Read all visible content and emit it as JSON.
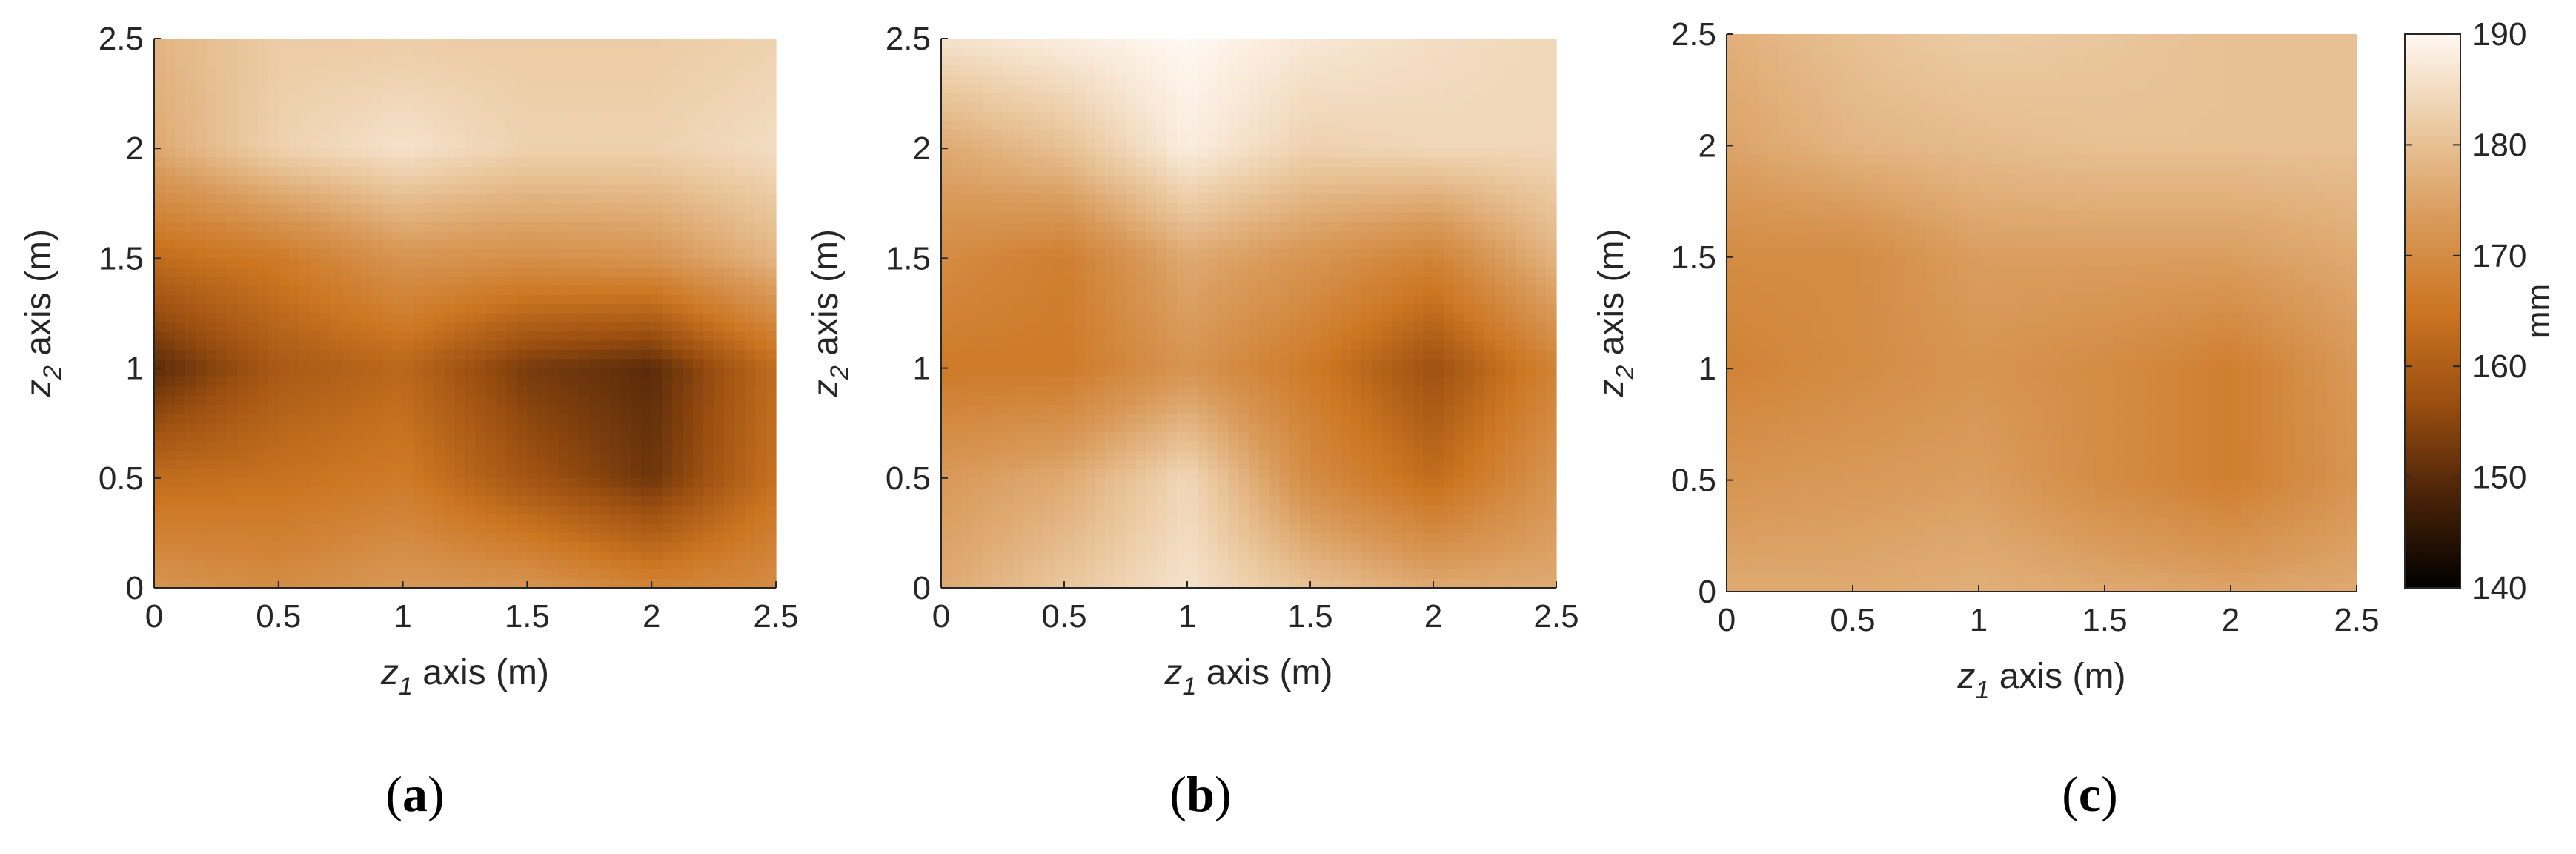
{
  "colors": {
    "colormap": [
      "#000000",
      "#4a2208",
      "#9a4e10",
      "#cc7622",
      "#d99a5a",
      "#ebcaa2",
      "#fff8f2"
    ],
    "frame": "#262626"
  },
  "colorbar": {
    "unit": "mm",
    "range": [
      140,
      190
    ],
    "ticks": [
      "140",
      "150",
      "160",
      "170",
      "180",
      "190"
    ]
  },
  "chart_data": [
    {
      "type": "heatmap",
      "caption": "a",
      "xlabel": "z1 axis (m)",
      "ylabel": "z2 axis (m)",
      "xlim": [
        0,
        2.5
      ],
      "ylim": [
        0,
        2.5
      ],
      "xticks": [
        "0",
        "0.5",
        "1",
        "1.5",
        "2",
        "2.5"
      ],
      "yticks": [
        "0",
        "0.5",
        "1",
        "1.5",
        "2",
        "2.5"
      ],
      "x": [
        0,
        0.5,
        1,
        1.5,
        2,
        2.5
      ],
      "y": [
        0,
        0.5,
        1,
        1.5,
        2,
        2.5
      ],
      "z": [
        [
          172,
          170,
          173,
          172,
          168,
          170
        ],
        [
          163,
          164,
          166,
          158,
          152,
          164
        ],
        [
          150,
          159,
          162,
          153,
          150,
          163
        ],
        [
          163,
          166,
          172,
          171,
          172,
          178
        ],
        [
          176,
          183,
          186,
          183,
          183,
          185
        ],
        [
          178,
          182,
          182,
          182,
          182,
          183
        ]
      ]
    },
    {
      "type": "heatmap",
      "caption": "b",
      "xlabel": "z1 axis (m)",
      "ylabel": "z2 axis (m)",
      "xlim": [
        0,
        2.5
      ],
      "ylim": [
        0,
        2.5
      ],
      "xticks": [
        "0",
        "0.5",
        "1",
        "1.5",
        "2",
        "2.5"
      ],
      "yticks": [
        "0",
        "0.5",
        "1",
        "1.5",
        "2",
        "2.5"
      ],
      "x": [
        0,
        0.5,
        1,
        1.5,
        2,
        2.5
      ],
      "y": [
        0,
        0.5,
        1,
        1.5,
        2,
        2.5
      ],
      "z": [
        [
          176,
          181,
          186,
          180,
          176,
          176
        ],
        [
          173,
          176,
          184,
          170,
          163,
          172
        ],
        [
          166,
          166,
          172,
          166,
          157,
          168
        ],
        [
          170,
          167,
          176,
          172,
          168,
          178
        ],
        [
          176,
          180,
          188,
          183,
          184,
          184
        ],
        [
          186,
          188,
          190,
          187,
          185,
          184
        ]
      ]
    },
    {
      "type": "heatmap",
      "caption": "c",
      "xlabel": "z1 axis (m)",
      "ylabel": "z2 axis (m)",
      "xlim": [
        0,
        2.5
      ],
      "ylim": [
        0,
        2.5
      ],
      "xticks": [
        "0",
        "0.5",
        "1",
        "1.5",
        "2",
        "2.5"
      ],
      "yticks": [
        "0",
        "0.5",
        "1",
        "1.5",
        "2",
        "2.5"
      ],
      "x": [
        0,
        0.5,
        1,
        1.5,
        2,
        2.5
      ],
      "y": [
        0,
        0.5,
        1,
        1.5,
        2,
        2.5
      ],
      "z": [
        [
          176,
          176,
          177,
          176,
          175,
          176
        ],
        [
          172,
          173,
          174,
          170,
          167,
          172
        ],
        [
          168,
          170,
          172,
          170,
          167,
          173
        ],
        [
          170,
          170,
          174,
          174,
          174,
          176
        ],
        [
          175,
          178,
          179,
          180,
          180,
          180
        ],
        [
          177,
          180,
          182,
          181,
          180,
          180
        ]
      ]
    }
  ]
}
